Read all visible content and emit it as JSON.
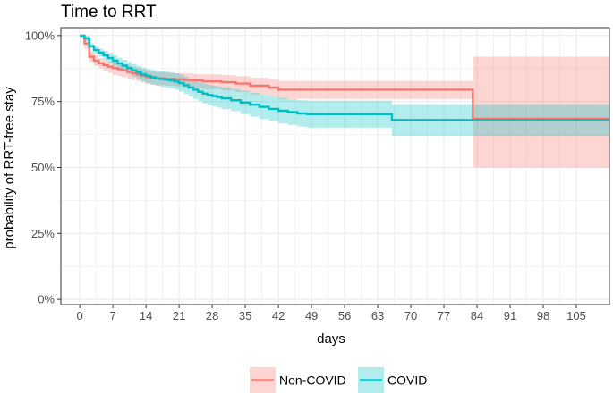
{
  "chart_data": {
    "type": "line",
    "subtype": "kaplan-meier survival curve with confidence bands",
    "title": "Time to RRT",
    "xlabel": "days",
    "ylabel": "probability of RRT-free stay",
    "xlim": [
      -4,
      112
    ],
    "ylim": [
      -0.02,
      1.03
    ],
    "x_ticks": [
      0,
      7,
      14,
      21,
      28,
      35,
      42,
      49,
      56,
      63,
      70,
      77,
      84,
      91,
      98,
      105
    ],
    "y_ticks": [
      {
        "value": 0,
        "label": "0%"
      },
      {
        "value": 0.25,
        "label": "25%"
      },
      {
        "value": 0.5,
        "label": "50%"
      },
      {
        "value": 0.75,
        "label": "75%"
      },
      {
        "value": 1.0,
        "label": "100%"
      }
    ],
    "grid": true,
    "legend_position": "bottom",
    "series": [
      {
        "name": "Non-COVID",
        "color": "#F8766D",
        "band_color": "#F8766D",
        "x": [
          0,
          1,
          1.5,
          2,
          3,
          4,
          5,
          6,
          7,
          8,
          9,
          10,
          11,
          12,
          13,
          14,
          15,
          16,
          18,
          20,
          22,
          24,
          26,
          30,
          33,
          36,
          40,
          42,
          83,
          83.1,
          112
        ],
        "y": [
          1.0,
          0.97,
          0.97,
          0.92,
          0.905,
          0.895,
          0.888,
          0.882,
          0.877,
          0.872,
          0.868,
          0.863,
          0.858,
          0.853,
          0.848,
          0.843,
          0.84,
          0.838,
          0.836,
          0.834,
          0.832,
          0.83,
          0.826,
          0.823,
          0.818,
          0.81,
          0.803,
          0.795,
          0.795,
          0.685,
          0.685
        ],
        "lower": [
          1.0,
          0.95,
          0.95,
          0.9,
          0.885,
          0.875,
          0.866,
          0.858,
          0.852,
          0.846,
          0.842,
          0.837,
          0.832,
          0.827,
          0.822,
          0.817,
          0.814,
          0.812,
          0.81,
          0.807,
          0.804,
          0.801,
          0.797,
          0.792,
          0.786,
          0.777,
          0.769,
          0.76,
          0.76,
          0.5,
          0.5
        ],
        "upper": [
          1.0,
          0.99,
          0.99,
          0.94,
          0.925,
          0.915,
          0.908,
          0.902,
          0.898,
          0.894,
          0.89,
          0.886,
          0.882,
          0.877,
          0.872,
          0.867,
          0.864,
          0.862,
          0.86,
          0.858,
          0.857,
          0.855,
          0.853,
          0.85,
          0.846,
          0.84,
          0.835,
          0.828,
          0.828,
          0.92,
          0.92
        ]
      },
      {
        "name": "COVID",
        "color": "#00BFC4",
        "band_color": "#00BFC4",
        "x": [
          0,
          1,
          1.5,
          2,
          3,
          4,
          5,
          6,
          7,
          8,
          9,
          10,
          11,
          12,
          13,
          14,
          15,
          16,
          17,
          18,
          19,
          20,
          21,
          22,
          23,
          24,
          25,
          26,
          27,
          28,
          29,
          30,
          32,
          34,
          36,
          38,
          40,
          42,
          44,
          46,
          48,
          66,
          112
        ],
        "y": [
          1.0,
          0.99,
          0.99,
          0.96,
          0.945,
          0.935,
          0.925,
          0.915,
          0.905,
          0.895,
          0.886,
          0.877,
          0.868,
          0.86,
          0.853,
          0.847,
          0.842,
          0.838,
          0.835,
          0.833,
          0.83,
          0.826,
          0.82,
          0.812,
          0.803,
          0.795,
          0.787,
          0.78,
          0.775,
          0.771,
          0.767,
          0.762,
          0.755,
          0.746,
          0.738,
          0.73,
          0.722,
          0.715,
          0.71,
          0.705,
          0.702,
          0.68,
          0.68
        ],
        "lower": [
          1.0,
          0.98,
          0.98,
          0.95,
          0.932,
          0.92,
          0.908,
          0.896,
          0.885,
          0.874,
          0.864,
          0.854,
          0.844,
          0.835,
          0.827,
          0.82,
          0.814,
          0.81,
          0.806,
          0.803,
          0.8,
          0.795,
          0.788,
          0.779,
          0.769,
          0.76,
          0.751,
          0.743,
          0.737,
          0.732,
          0.727,
          0.721,
          0.713,
          0.702,
          0.693,
          0.684,
          0.675,
          0.667,
          0.661,
          0.655,
          0.651,
          0.62,
          0.62
        ],
        "upper": [
          1.0,
          1.0,
          1.0,
          0.97,
          0.958,
          0.95,
          0.942,
          0.934,
          0.925,
          0.916,
          0.908,
          0.9,
          0.892,
          0.885,
          0.879,
          0.874,
          0.87,
          0.866,
          0.864,
          0.863,
          0.86,
          0.857,
          0.852,
          0.845,
          0.837,
          0.83,
          0.823,
          0.817,
          0.813,
          0.81,
          0.807,
          0.803,
          0.797,
          0.79,
          0.783,
          0.776,
          0.769,
          0.763,
          0.759,
          0.755,
          0.753,
          0.74,
          0.74
        ]
      }
    ]
  }
}
